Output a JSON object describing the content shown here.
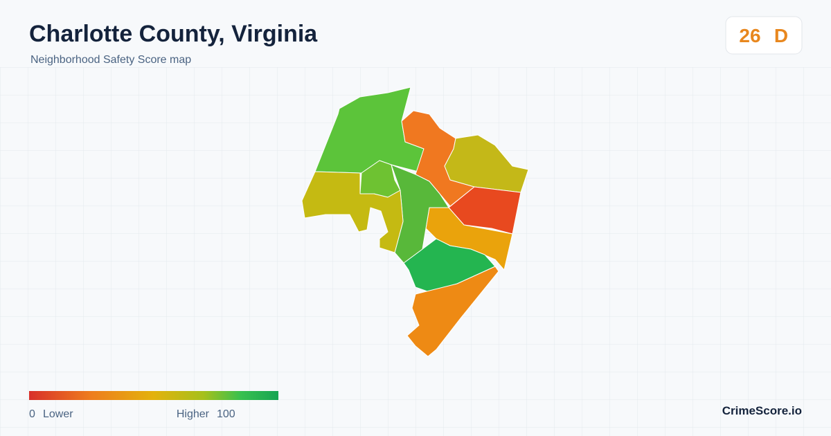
{
  "header": {
    "title": "Charlotte County, Virginia",
    "subtitle": "Neighborhood Safety Score map"
  },
  "badge": {
    "score": "26",
    "grade": "D"
  },
  "legend": {
    "min": "0",
    "min_label": "Lower",
    "max_label": "Higher",
    "max": "100"
  },
  "brand": "CrimeScore.io"
}
